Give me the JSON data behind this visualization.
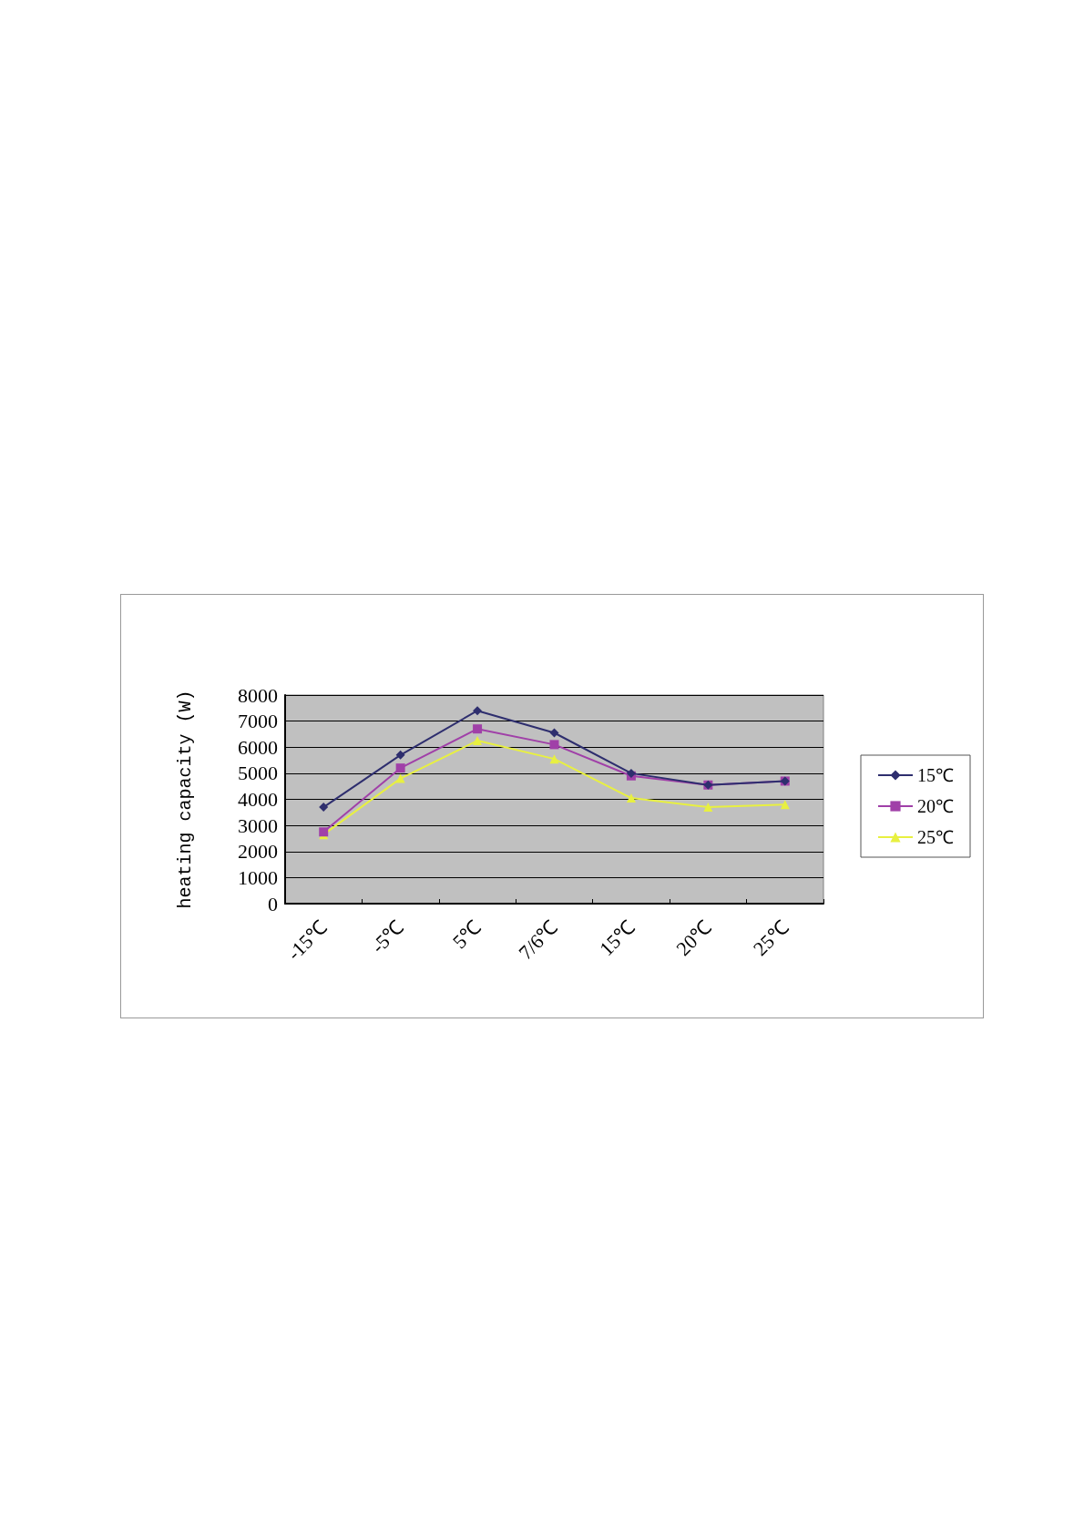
{
  "chart_data": {
    "type": "line",
    "ylabel": "heating capacity (W)",
    "categories": [
      "-15℃",
      "-5℃",
      "5℃",
      "7/6℃",
      "15℃",
      "20℃",
      "25℃"
    ],
    "series": [
      {
        "name": "15℃",
        "color": "#2e2e6e",
        "marker": "diamond",
        "values": [
          3700,
          5700,
          7400,
          6550,
          5000,
          4550,
          4700
        ]
      },
      {
        "name": "20℃",
        "color": "#a040a8",
        "marker": "square",
        "values": [
          2750,
          5200,
          6700,
          6100,
          4900,
          4550,
          4700
        ]
      },
      {
        "name": "25℃",
        "color": "#e8f040",
        "marker": "triangle",
        "values": [
          2650,
          4800,
          6250,
          5550,
          4050,
          3700,
          3800
        ]
      }
    ],
    "ylim": [
      0,
      8000
    ],
    "yticks": [
      0,
      1000,
      2000,
      3000,
      4000,
      5000,
      6000,
      7000,
      8000
    ],
    "grid": "y",
    "legend": "right"
  }
}
